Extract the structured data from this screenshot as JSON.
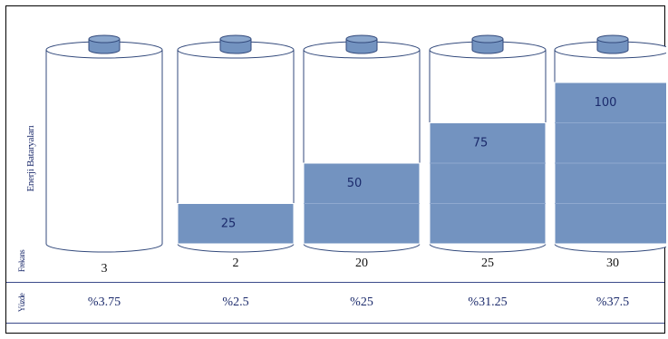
{
  "chart_data": {
    "type": "bar",
    "ylabel": "Enerji Bataryaları",
    "row_labels": {
      "frequency": "Frekans",
      "percent": "Yüzde"
    },
    "values": [
      0,
      25,
      50,
      75,
      100
    ],
    "data_labels": [
      "",
      "25",
      "50",
      "75",
      "100"
    ],
    "frequencies": [
      "3",
      "2",
      "20",
      "25",
      "30"
    ],
    "percents": [
      "%3.75",
      "%2.5",
      "%25",
      "%31.25",
      "%37.5"
    ],
    "ylim": [
      0,
      100
    ],
    "colors": {
      "fill": "#7393c0",
      "fill_stroke": "#ffffff",
      "outline": "#334a7c",
      "cap": "#7393c0",
      "text": "#1b2a6b"
    }
  }
}
